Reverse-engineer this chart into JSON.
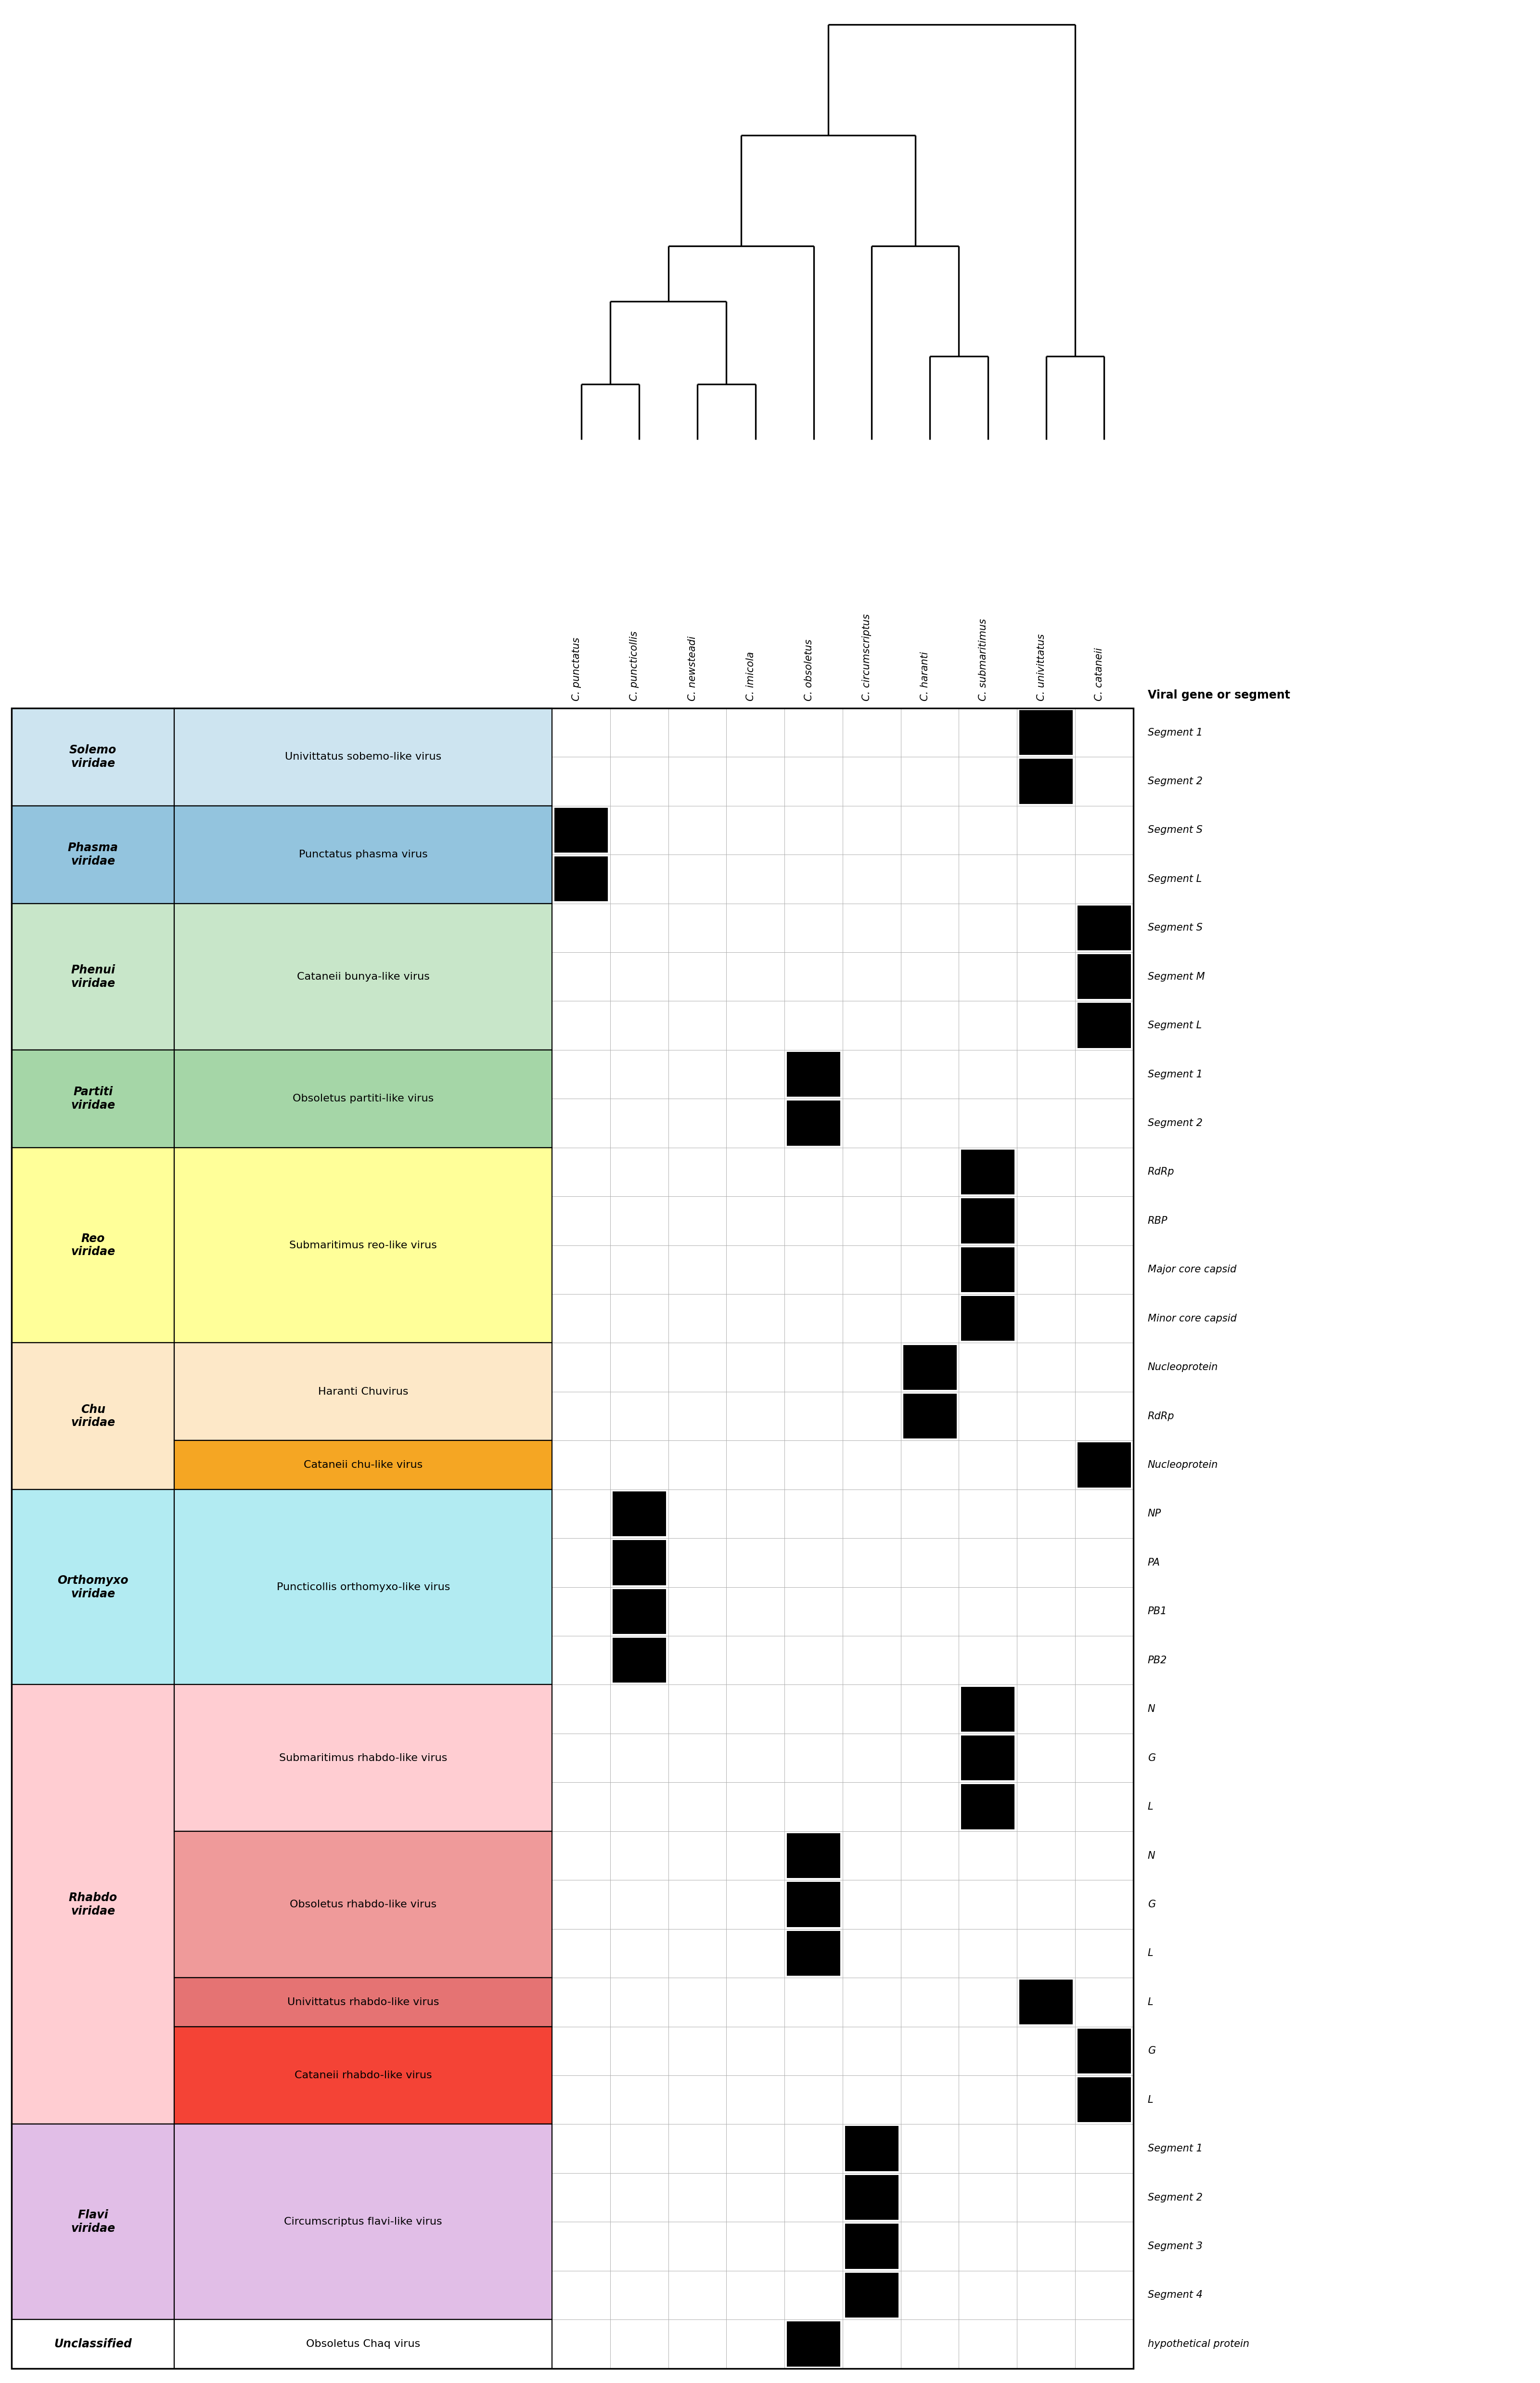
{
  "columns": [
    "C. punctatus",
    "C. puncticollis",
    "C. newsteadi",
    "C. imicola",
    "C. obsoletus",
    "C. circumscriptus",
    "C. haranti",
    "C. submaritimus",
    "C. univittatus",
    "C. cataneii"
  ],
  "header_label": "Viral gene or segment",
  "families": [
    {
      "name": "Solemo\nviridae",
      "bg_color": "#cde4f0",
      "name_bold": true,
      "name_italic": true,
      "viruses": [
        {
          "name": "Univittatus sobemo-like virus",
          "bg_color": "#cde4f0",
          "segments": [
            "Segment 1",
            "Segment 2"
          ],
          "presence": [
            [
              0,
              0,
              0,
              0,
              0,
              0,
              0,
              0,
              1,
              0
            ],
            [
              0,
              0,
              0,
              0,
              0,
              0,
              0,
              0,
              1,
              0
            ]
          ]
        }
      ]
    },
    {
      "name": "Phasma\nviridae",
      "bg_color": "#93c4de",
      "name_bold": true,
      "name_italic": true,
      "viruses": [
        {
          "name": "Punctatus phasma virus",
          "bg_color": "#93c4de",
          "segments": [
            "Segment S",
            "Segment L"
          ],
          "presence": [
            [
              1,
              0,
              0,
              0,
              0,
              0,
              0,
              0,
              0,
              0
            ],
            [
              1,
              0,
              0,
              0,
              0,
              0,
              0,
              0,
              0,
              0
            ]
          ]
        }
      ]
    },
    {
      "name": "Phenui\nviridae",
      "bg_color": "#c8e6c9",
      "name_bold": true,
      "name_italic": true,
      "viruses": [
        {
          "name": "Cataneii bunya-like virus",
          "bg_color": "#c8e6c9",
          "segments": [
            "Segment S",
            "Segment M",
            "Segment L"
          ],
          "presence": [
            [
              0,
              0,
              0,
              0,
              0,
              0,
              0,
              0,
              0,
              1
            ],
            [
              0,
              0,
              0,
              0,
              0,
              0,
              0,
              0,
              0,
              1
            ],
            [
              0,
              0,
              0,
              0,
              0,
              0,
              0,
              0,
              0,
              1
            ]
          ]
        }
      ]
    },
    {
      "name": "Partiti\nviridae",
      "bg_color": "#a5d6a7",
      "name_bold": true,
      "name_italic": true,
      "viruses": [
        {
          "name": "Obsoletus partiti-like virus",
          "bg_color": "#a5d6a7",
          "segments": [
            "Segment 1",
            "Segment 2"
          ],
          "presence": [
            [
              0,
              0,
              0,
              0,
              1,
              0,
              0,
              0,
              0,
              0
            ],
            [
              0,
              0,
              0,
              0,
              1,
              0,
              0,
              0,
              0,
              0
            ]
          ]
        }
      ]
    },
    {
      "name": "Reo\nviridae",
      "bg_color": "#ffff99",
      "name_bold": true,
      "name_italic": true,
      "viruses": [
        {
          "name": "Submaritimus reo-like virus",
          "bg_color": "#ffff99",
          "segments": [
            "RdRp",
            "RBP",
            "Major core capsid",
            "Minor core capsid"
          ],
          "presence": [
            [
              0,
              0,
              0,
              0,
              0,
              0,
              0,
              1,
              0,
              0
            ],
            [
              0,
              0,
              0,
              0,
              0,
              0,
              0,
              1,
              0,
              0
            ],
            [
              0,
              0,
              0,
              0,
              0,
              0,
              0,
              1,
              0,
              0
            ],
            [
              0,
              0,
              0,
              0,
              0,
              0,
              0,
              1,
              0,
              0
            ]
          ]
        }
      ]
    },
    {
      "name": "Chu\nviridae",
      "bg_color": "#fde8c8",
      "name_bold": true,
      "name_italic": true,
      "viruses": [
        {
          "name": "Haranti Chuvirus",
          "bg_color": "#fde8c8",
          "segments": [
            "Nucleoprotein",
            "RdRp"
          ],
          "presence": [
            [
              0,
              0,
              0,
              0,
              0,
              0,
              1,
              0,
              0,
              0
            ],
            [
              0,
              0,
              0,
              0,
              0,
              0,
              1,
              0,
              0,
              0
            ]
          ]
        },
        {
          "name": "Cataneii chu-like virus",
          "bg_color": "#f5a623",
          "segments": [
            "Nucleoprotein"
          ],
          "presence": [
            [
              0,
              0,
              0,
              0,
              0,
              0,
              0,
              0,
              0,
              1
            ]
          ]
        }
      ]
    },
    {
      "name": "Orthomyxo\nviridae",
      "bg_color": "#b2ebf2",
      "name_bold": true,
      "name_italic": true,
      "viruses": [
        {
          "name": "Puncticollis orthomyxo-like virus",
          "bg_color": "#b2ebf2",
          "segments": [
            "NP",
            "PA",
            "PB1",
            "PB2"
          ],
          "presence": [
            [
              0,
              1,
              0,
              0,
              0,
              0,
              0,
              0,
              0,
              0
            ],
            [
              0,
              1,
              0,
              0,
              0,
              0,
              0,
              0,
              0,
              0
            ],
            [
              0,
              1,
              0,
              0,
              0,
              0,
              0,
              0,
              0,
              0
            ],
            [
              0,
              1,
              0,
              0,
              0,
              0,
              0,
              0,
              0,
              0
            ]
          ]
        }
      ]
    },
    {
      "name": "Rhabdo\nviridae",
      "bg_color": "#ffcdd2",
      "name_bold": true,
      "name_italic": true,
      "viruses": [
        {
          "name": "Submaritimus rhabdo-like virus",
          "bg_color": "#ffcdd2",
          "segments": [
            "N",
            "G",
            "L"
          ],
          "presence": [
            [
              0,
              0,
              0,
              0,
              0,
              0,
              0,
              1,
              0,
              0
            ],
            [
              0,
              0,
              0,
              0,
              0,
              0,
              0,
              1,
              0,
              0
            ],
            [
              0,
              0,
              0,
              0,
              0,
              0,
              0,
              1,
              0,
              0
            ]
          ]
        },
        {
          "name": "Obsoletus rhabdo-like virus",
          "bg_color": "#ef9a9a",
          "segments": [
            "N",
            "G",
            "L"
          ],
          "presence": [
            [
              0,
              0,
              0,
              0,
              1,
              0,
              0,
              0,
              0,
              0
            ],
            [
              0,
              0,
              0,
              0,
              1,
              0,
              0,
              0,
              0,
              0
            ],
            [
              0,
              0,
              0,
              0,
              1,
              0,
              0,
              0,
              0,
              0
            ]
          ]
        },
        {
          "name": "Univittatus rhabdo-like virus",
          "bg_color": "#e57373",
          "segments": [
            "L"
          ],
          "presence": [
            [
              0,
              0,
              0,
              0,
              0,
              0,
              0,
              0,
              1,
              0
            ]
          ]
        },
        {
          "name": "Cataneii rhabdo-like virus",
          "bg_color": "#f44336",
          "segments": [
            "G",
            "L"
          ],
          "presence": [
            [
              0,
              0,
              0,
              0,
              0,
              0,
              0,
              0,
              0,
              1
            ],
            [
              0,
              0,
              0,
              0,
              0,
              0,
              0,
              0,
              0,
              1
            ]
          ]
        }
      ]
    },
    {
      "name": "Flavi\nviridae",
      "bg_color": "#e1bee7",
      "name_bold": true,
      "name_italic": true,
      "viruses": [
        {
          "name": "Circumscriptus flavi-like virus",
          "bg_color": "#e1bee7",
          "segments": [
            "Segment 1",
            "Segment 2",
            "Segment 3",
            "Segment 4"
          ],
          "presence": [
            [
              0,
              0,
              0,
              0,
              0,
              1,
              0,
              0,
              0,
              0
            ],
            [
              0,
              0,
              0,
              0,
              0,
              1,
              0,
              0,
              0,
              0
            ],
            [
              0,
              0,
              0,
              0,
              0,
              1,
              0,
              0,
              0,
              0
            ],
            [
              0,
              0,
              0,
              0,
              0,
              1,
              0,
              0,
              0,
              0
            ]
          ]
        }
      ]
    },
    {
      "name": "Unclassified",
      "bg_color": "#ffffff",
      "name_bold": true,
      "name_italic": true,
      "viruses": [
        {
          "name": "Obsoletus Chaq virus",
          "bg_color": "#ffffff",
          "segments": [
            "hypothetical protein"
          ],
          "presence": [
            [
              0,
              0,
              0,
              0,
              1,
              0,
              0,
              0,
              0,
              0
            ]
          ]
        }
      ]
    }
  ]
}
